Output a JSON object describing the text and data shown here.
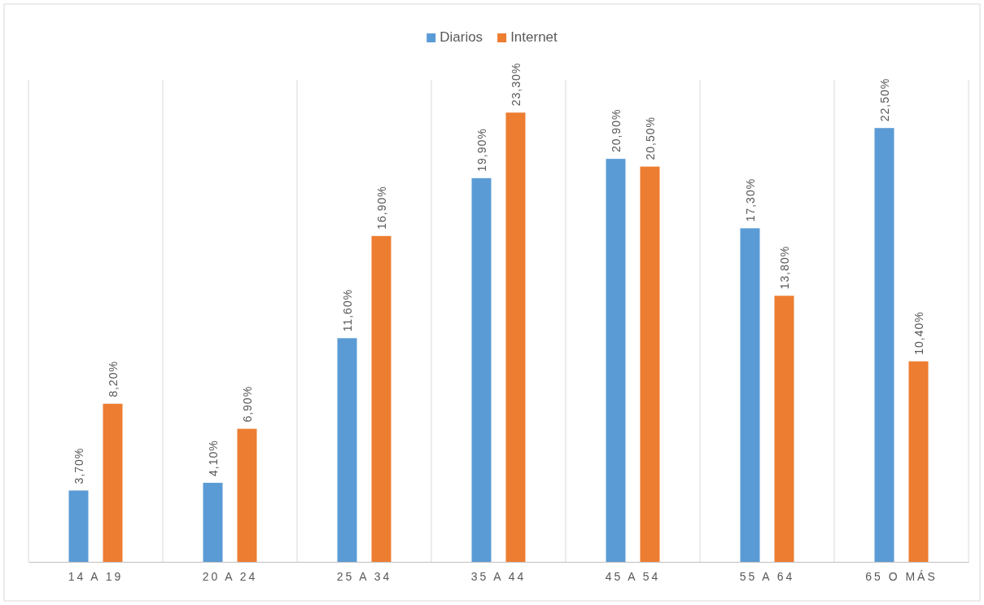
{
  "chart_data": {
    "type": "bar",
    "categories": [
      "14 A 19",
      "20 A 24",
      "25 A 34",
      "35 A 44",
      "45 A 54",
      "55 A 64",
      "65 O MÁS"
    ],
    "series": [
      {
        "name": "Diarios",
        "color": "#5b9bd5",
        "values": [
          3.7,
          4.1,
          11.6,
          19.9,
          20.9,
          17.3,
          22.5
        ],
        "value_labels": [
          "3,70%",
          "4,10%",
          "11,60%",
          "19,90%",
          "20,90%",
          "17,30%",
          "22,50%"
        ]
      },
      {
        "name": "Internet",
        "color": "#ed7d31",
        "values": [
          8.2,
          6.9,
          16.9,
          23.3,
          20.5,
          13.8,
          10.4
        ],
        "value_labels": [
          "8,20%",
          "6,90%",
          "16,90%",
          "23,30%",
          "20,50%",
          "13,80%",
          "10,40%"
        ]
      }
    ],
    "grid": "x",
    "legend": "top"
  }
}
